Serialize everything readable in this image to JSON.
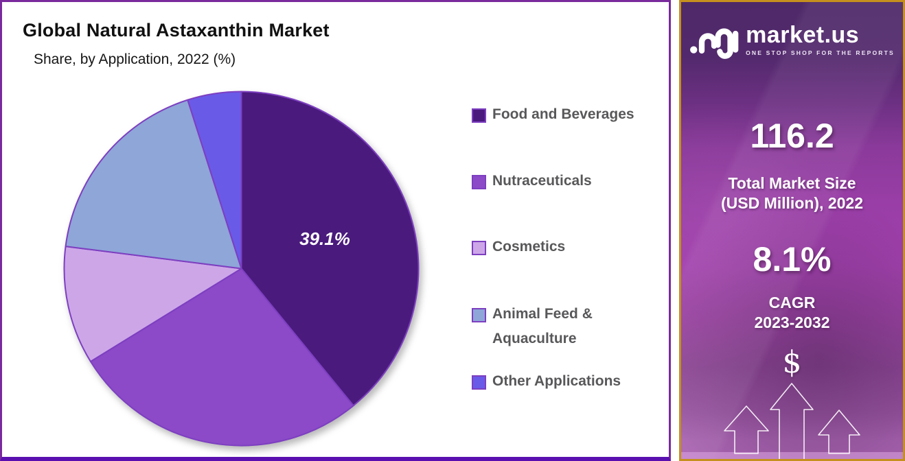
{
  "chart_panel": {
    "title": "Global Natural Astaxanthin Market",
    "subtitle": "Share, by Application, 2022 (%)"
  },
  "chart_data": {
    "type": "pie",
    "title": "Global Natural Astaxanthin Market Share, by Application, 2022 (%)",
    "categories": [
      "Food and Beverages",
      "Nutraceuticals",
      "Cosmetics",
      "Animal Feed & Aquaculture",
      "Other Applications"
    ],
    "values": [
      39.1,
      27.1,
      10.8,
      18.1,
      4.9
    ],
    "value_note": "Only the 39.1% slice is labeled in the image; other values estimated from slice angles",
    "colors": [
      "#4a1a7d",
      "#8c4ac8",
      "#cda6e8",
      "#8ea6d8",
      "#6a5ae8"
    ],
    "stroke_color": "#7d3fc0",
    "start_angle_deg": 0,
    "direction": "clockwise",
    "legend_position": "right",
    "labeled_slice": {
      "index": 0,
      "text": "39.1%"
    }
  },
  "brand_panel": {
    "logo_text": "market.us",
    "tagline": "ONE STOP SHOP FOR THE REPORTS",
    "market_size": {
      "value": "116.2",
      "label_line1": "Total Market Size",
      "label_line2": "(USD Million), 2022"
    },
    "cagr": {
      "value": "8.1%",
      "label_line1": "CAGR",
      "label_line2": "2023-2032"
    },
    "dollar_symbol": "$",
    "border_color": "#c5901e",
    "accent_dark_purple": "#4e2968",
    "accent_magenta": "#a241ad"
  }
}
